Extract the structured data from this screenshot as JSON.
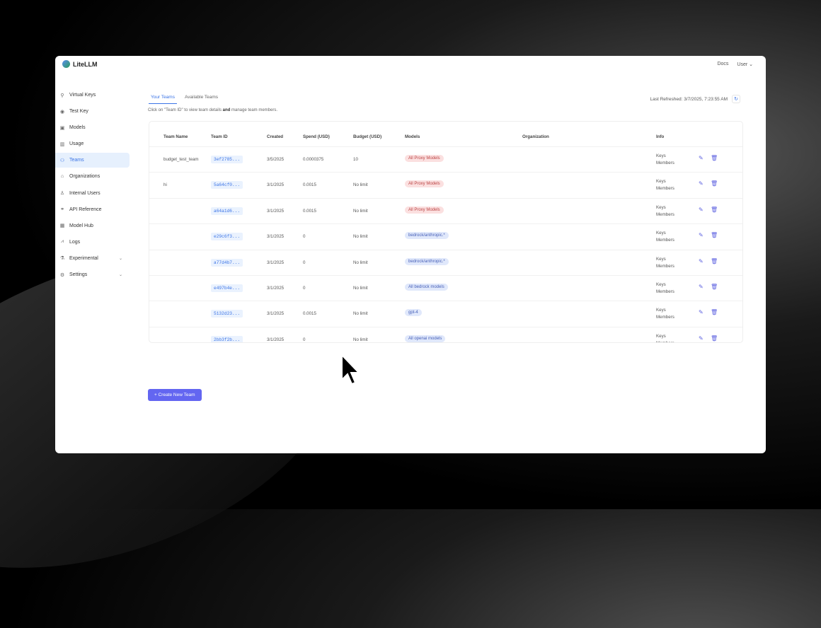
{
  "app": {
    "name": "LiteLLM",
    "docs": "Docs",
    "user": "User"
  },
  "sidebar": {
    "items": [
      {
        "label": "Virtual Keys",
        "icon": "key-icon"
      },
      {
        "label": "Test Key",
        "icon": "play-circle-icon"
      },
      {
        "label": "Models",
        "icon": "block-icon"
      },
      {
        "label": "Usage",
        "icon": "bar-chart-icon"
      },
      {
        "label": "Teams",
        "icon": "team-icon",
        "active": true
      },
      {
        "label": "Organizations",
        "icon": "bank-icon"
      },
      {
        "label": "Internal Users",
        "icon": "user-icon"
      },
      {
        "label": "API Reference",
        "icon": "link-icon"
      },
      {
        "label": "Model Hub",
        "icon": "grid-icon"
      },
      {
        "label": "Logs",
        "icon": "line-chart-icon"
      },
      {
        "label": "Experimental",
        "icon": "flask-icon",
        "expandable": true
      },
      {
        "label": "Settings",
        "icon": "gear-icon",
        "expandable": true
      }
    ]
  },
  "main": {
    "tabs": [
      {
        "label": "Your Teams",
        "active": true
      },
      {
        "label": "Available Teams"
      }
    ],
    "hint_pre": "Click on \"Team ID\" to view team details ",
    "hint_bold": "and",
    "hint_post": " manage team members.",
    "last_refreshed": "Last Refreshed: 3/7/2025, 7:23:55 AM",
    "columns": [
      "Team Name",
      "Team ID",
      "Created",
      "Spend (USD)",
      "Budget (USD)",
      "Models",
      "Organization",
      "Info"
    ],
    "rows": [
      {
        "name": "budget_test_team",
        "id": "3ef2785...",
        "created": "3/5/2025",
        "spend": "0.0000375",
        "budget": "10",
        "model": "All Proxy Models",
        "model_color": "red",
        "org": "",
        "info": [
          "Keys",
          "Members"
        ]
      },
      {
        "name": "hi",
        "id": "5a64cf0...",
        "created": "3/1/2025",
        "spend": "0.0015",
        "budget": "No limit",
        "model": "All Proxy Models",
        "model_color": "red",
        "org": "",
        "info": [
          "Keys",
          "Members"
        ]
      },
      {
        "name": "",
        "id": "a64a1d6...",
        "created": "3/1/2025",
        "spend": "0.0015",
        "budget": "No limit",
        "model": "All Proxy Models",
        "model_color": "red",
        "org": "",
        "info": [
          "Keys",
          "Members"
        ]
      },
      {
        "name": "",
        "id": "e29c6f3...",
        "created": "3/1/2025",
        "spend": "0",
        "budget": "No limit",
        "model": "bedrock/anthropic.*",
        "model_color": "blue",
        "org": "",
        "info": [
          "Keys",
          "Members"
        ]
      },
      {
        "name": "",
        "id": "a77d4b7...",
        "created": "3/1/2025",
        "spend": "0",
        "budget": "No limit",
        "model": "bedrock/anthropic.*",
        "model_color": "blue",
        "org": "",
        "info": [
          "Keys",
          "Members"
        ]
      },
      {
        "name": "",
        "id": "e497b4e...",
        "created": "3/1/2025",
        "spend": "0",
        "budget": "No limit",
        "model": "All bedrock models",
        "model_color": "blue",
        "org": "",
        "info": [
          "Keys",
          "Members"
        ]
      },
      {
        "name": "",
        "id": "5132d23...",
        "created": "3/1/2025",
        "spend": "0.0015",
        "budget": "No limit",
        "model": "gpt-4",
        "model_color": "blue",
        "org": "",
        "info": [
          "Keys",
          "Members"
        ]
      },
      {
        "name": "",
        "id": "2bb3f2b...",
        "created": "3/1/2025",
        "spend": "0",
        "budget": "No limit",
        "model": "All openai models",
        "model_color": "blue",
        "org": "",
        "info": [
          "Keys",
          "Members"
        ]
      }
    ],
    "create_button": "+ Create New Team"
  }
}
